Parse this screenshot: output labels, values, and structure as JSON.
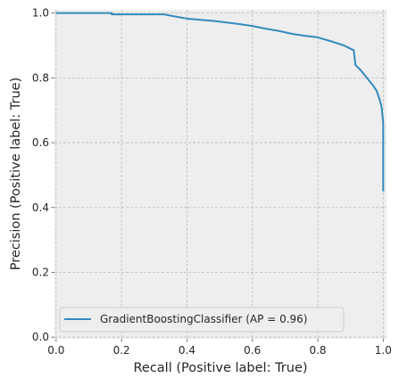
{
  "chart_data": {
    "type": "line",
    "title": "",
    "xlabel": "Recall (Positive label: True)",
    "ylabel": "Precision (Positive label: True)",
    "xlim": [
      -0.005,
      1.01
    ],
    "ylim": [
      -0.005,
      1.01
    ],
    "grid": true,
    "legend_position": "lower-left",
    "x_ticks": [
      "0.0",
      "0.2",
      "0.4",
      "0.6",
      "0.8",
      "1.0"
    ],
    "y_ticks": [
      "0.0",
      "0.2",
      "0.4",
      "0.6",
      "0.8",
      "1.0"
    ],
    "colors": {
      "line": "#348abd",
      "plot_bg": "#eeeeee",
      "grid": "#bbbbbb"
    },
    "series": [
      {
        "name": "GradientBoostingClassifier (AP = 0.96)",
        "x": [
          0.0,
          0.01,
          0.17,
          0.17,
          0.33,
          0.36,
          0.4,
          0.44,
          0.48,
          0.52,
          0.56,
          0.6,
          0.64,
          0.68,
          0.72,
          0.76,
          0.8,
          0.84,
          0.88,
          0.91,
          0.915,
          0.93,
          0.95,
          0.97,
          0.98,
          0.99,
          0.995,
          0.997,
          1.0,
          1.0
        ],
        "y": [
          1.0,
          1.0,
          1.0,
          0.996,
          0.996,
          0.99,
          0.983,
          0.979,
          0.976,
          0.971,
          0.966,
          0.96,
          0.952,
          0.945,
          0.936,
          0.93,
          0.925,
          0.913,
          0.9,
          0.885,
          0.84,
          0.825,
          0.8,
          0.775,
          0.76,
          0.73,
          0.71,
          0.69,
          0.66,
          0.45
        ]
      }
    ]
  }
}
